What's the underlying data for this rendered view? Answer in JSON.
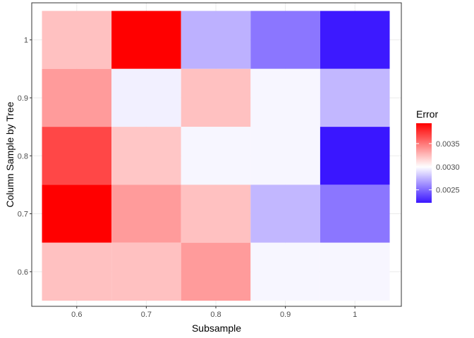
{
  "chart_data": {
    "type": "heatmap",
    "xlabel": "Subsample",
    "ylabel": "Column Sample by Tree",
    "x_categories": [
      "0.6",
      "0.7",
      "0.8",
      "0.9",
      "1"
    ],
    "y_categories": [
      "0.6",
      "0.7",
      "0.8",
      "0.9",
      "1"
    ],
    "cells": [
      {
        "x": "0.6",
        "y": "1",
        "value": 0.00323
      },
      {
        "x": "0.7",
        "y": "1",
        "value": 0.00394
      },
      {
        "x": "0.8",
        "y": "1",
        "value": 0.00274
      },
      {
        "x": "0.9",
        "y": "1",
        "value": 0.00254
      },
      {
        "x": "1",
        "y": "1",
        "value": 0.00223
      },
      {
        "x": "0.6",
        "y": "0.9",
        "value": 0.00337
      },
      {
        "x": "0.7",
        "y": "0.9",
        "value": 0.00295
      },
      {
        "x": "0.8",
        "y": "0.9",
        "value": 0.00323
      },
      {
        "x": "0.9",
        "y": "0.9",
        "value": 0.00297
      },
      {
        "x": "1",
        "y": "0.9",
        "value": 0.00276
      },
      {
        "x": "0.6",
        "y": "0.8",
        "value": 0.00368
      },
      {
        "x": "0.7",
        "y": "0.8",
        "value": 0.00321
      },
      {
        "x": "0.8",
        "y": "0.8",
        "value": 0.00297
      },
      {
        "x": "0.9",
        "y": "0.8",
        "value": 0.00297
      },
      {
        "x": "1",
        "y": "0.8",
        "value": 0.00222
      },
      {
        "x": "0.6",
        "y": "0.7",
        "value": 0.00394
      },
      {
        "x": "0.7",
        "y": "0.7",
        "value": 0.00337
      },
      {
        "x": "0.8",
        "y": "0.7",
        "value": 0.00323
      },
      {
        "x": "0.9",
        "y": "0.7",
        "value": 0.00276
      },
      {
        "x": "1",
        "y": "0.7",
        "value": 0.00254
      },
      {
        "x": "0.6",
        "y": "0.6",
        "value": 0.00323
      },
      {
        "x": "0.7",
        "y": "0.6",
        "value": 0.00323
      },
      {
        "x": "0.8",
        "y": "0.6",
        "value": 0.00337
      },
      {
        "x": "0.9",
        "y": "0.6",
        "value": 0.00297
      },
      {
        "x": "1",
        "y": "0.6",
        "value": 0.00297
      }
    ],
    "color_scale": {
      "low": "#3a16ff",
      "mid": "#ffffff",
      "high": "#ff0000",
      "midpoint": 0.003,
      "limits": [
        0.00222,
        0.00394
      ]
    },
    "legend": {
      "title": "Error",
      "breaks": [
        0.0025,
        0.003,
        0.0035
      ],
      "labels": [
        "0.0025",
        "0.0030",
        "0.0035"
      ],
      "placement": "right"
    },
    "grid": true
  }
}
